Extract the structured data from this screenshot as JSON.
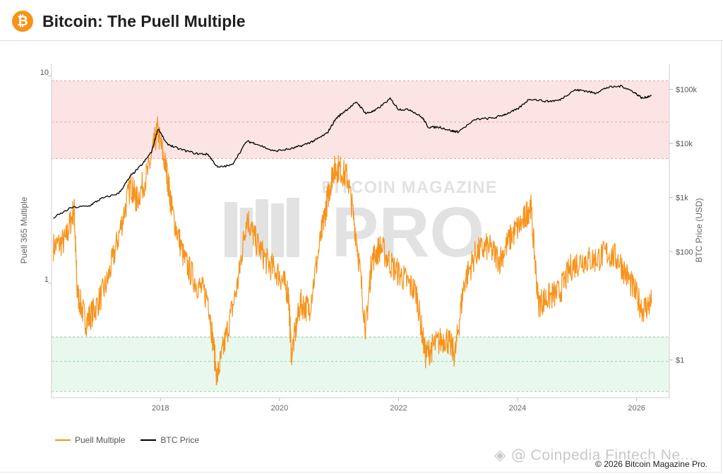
{
  "header": {
    "icon": "bitcoin-icon",
    "logo_glyph": "₿",
    "title": "Bitcoin: The Puell Multiple"
  },
  "colors": {
    "puell": "#f7931a",
    "btc": "#000000",
    "high_band": "#fde4e4",
    "low_band": "#e8f8ee",
    "watermark": "#e2e2e2"
  },
  "watermark": {
    "line1": "BITCOIN MAGAZINE",
    "line2": "PRO"
  },
  "chart_data": {
    "type": "line",
    "title": "Bitcoin: The Puell Multiple",
    "ylabel_left": "Puell 365 Multiple",
    "ylabel_right": "BTC Price (USD)",
    "x_ticks": [
      "2018",
      "2020",
      "2022",
      "2024",
      "2026"
    ],
    "x_range": [
      "2016-03",
      "2026-07"
    ],
    "y_left_scale": "log",
    "y_left_ticks": [
      "10",
      "1"
    ],
    "y_left_range": [
      0.28,
      11.5
    ],
    "y_right_scale": "log",
    "y_right_ticks": [
      "$100k",
      "$10k",
      "$1k",
      "$100",
      "$1"
    ],
    "y_right_range": [
      0.2,
      300000
    ],
    "high_band": [
      4,
      9.5
    ],
    "low_band": [
      0.3,
      0.55
    ],
    "legend_position": "bottom-left",
    "series": [
      {
        "name": "Puell Multiple",
        "axis": "left",
        "x": [
          2016.2,
          2016.4,
          2016.55,
          2016.6,
          2016.75,
          2016.9,
          2017.1,
          2017.3,
          2017.5,
          2017.6,
          2017.8,
          2017.95,
          2018.1,
          2018.2,
          2018.4,
          2018.6,
          2018.8,
          2018.95,
          2019.1,
          2019.3,
          2019.45,
          2019.6,
          2019.8,
          2020.0,
          2020.15,
          2020.2,
          2020.35,
          2020.5,
          2020.7,
          2020.8,
          2020.9,
          2021.0,
          2021.15,
          2021.3,
          2021.45,
          2021.55,
          2021.7,
          2021.9,
          2022.1,
          2022.3,
          2022.45,
          2022.6,
          2022.8,
          2022.95,
          2023.1,
          2023.3,
          2023.5,
          2023.7,
          2023.9,
          2024.1,
          2024.22,
          2024.35,
          2024.5,
          2024.7,
          2024.9,
          2025.1,
          2025.3,
          2025.5,
          2025.7,
          2025.9,
          2026.1,
          2026.25
        ],
        "y": [
          1.5,
          1.6,
          2.3,
          0.9,
          0.65,
          0.75,
          1.0,
          1.7,
          3.0,
          2.5,
          3.5,
          5.5,
          3.5,
          2.2,
          1.3,
          1.0,
          0.85,
          0.35,
          0.55,
          1.0,
          2.1,
          1.6,
          1.25,
          1.1,
          0.9,
          0.45,
          0.8,
          0.75,
          1.7,
          2.5,
          3.5,
          3.6,
          3.2,
          1.6,
          0.6,
          1.3,
          1.5,
          1.2,
          1.05,
          0.9,
          0.45,
          0.5,
          0.55,
          0.45,
          1.0,
          1.4,
          1.5,
          1.3,
          1.7,
          2.0,
          2.4,
          0.8,
          0.85,
          0.9,
          1.2,
          1.3,
          1.3,
          1.4,
          1.3,
          1.0,
          0.75,
          0.8
        ]
      },
      {
        "name": "BTC Price",
        "axis": "right",
        "x": [
          2016.2,
          2016.5,
          2016.8,
          2017.0,
          2017.3,
          2017.5,
          2017.7,
          2017.85,
          2017.96,
          2018.1,
          2018.3,
          2018.6,
          2018.8,
          2018.96,
          2019.2,
          2019.45,
          2019.6,
          2019.9,
          2020.2,
          2020.4,
          2020.6,
          2020.8,
          2020.95,
          2021.1,
          2021.3,
          2021.45,
          2021.6,
          2021.86,
          2022.0,
          2022.2,
          2022.4,
          2022.5,
          2022.7,
          2022.9,
          2023.0,
          2023.3,
          2023.6,
          2023.8,
          2024.0,
          2024.2,
          2024.5,
          2024.7,
          2024.95,
          2025.1,
          2025.3,
          2025.5,
          2025.75,
          2025.95,
          2026.1,
          2026.25
        ],
        "y": [
          420,
          650,
          700,
          950,
          1200,
          2500,
          4200,
          7000,
          19000,
          10000,
          8000,
          6500,
          6300,
          3600,
          4000,
          11000,
          10000,
          7200,
          8000,
          9300,
          11500,
          15500,
          29000,
          40000,
          58000,
          36000,
          40000,
          67000,
          43000,
          42000,
          30000,
          20000,
          20000,
          17000,
          16500,
          28000,
          29500,
          35000,
          43000,
          67000,
          60000,
          63000,
          97000,
          96000,
          85000,
          108000,
          115000,
          90000,
          68000,
          78000
        ]
      }
    ]
  },
  "legend": {
    "items": [
      {
        "label": "Puell Multiple",
        "color": "#f7931a"
      },
      {
        "label": "BTC Price",
        "color": "#000000"
      }
    ]
  },
  "watermarks": {
    "coinpedia": "Coinpedia Fintech Ne...",
    "coinpedia_glyph": "◈ @"
  },
  "footer": {
    "copyright": "© 2026 Bitcoin Magazine Pro."
  }
}
